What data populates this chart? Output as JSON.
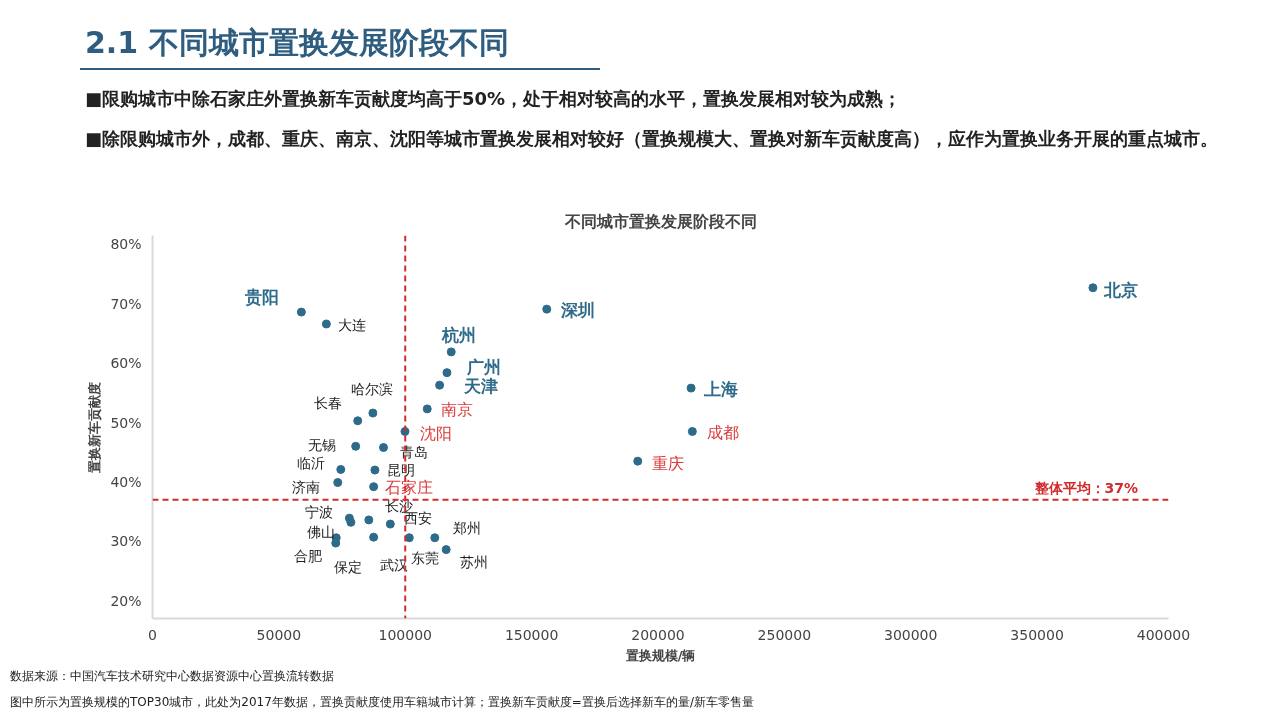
{
  "chart_data": {
    "type": "scatter",
    "title": "2.1 不同城市置换发展阶段不同",
    "subtitle": "不同城市置换发展阶段不同",
    "xlabel": "置换规模/辆",
    "ylabel": "置换新车贡献度",
    "annotations": [
      "■限购城市中除石家庄外置换新车贡献度均高于50%，处于相对较高的水平，置换发展相对较为成熟；",
      "■除限购城市外，成都、重庆、南京、沈阳等城市置换发展相对较好（置换规模大、置换对新车贡献度高），应作为置换业务开展的重点城市。",
      "数据来源：中国汽车技术研究中心数据资源中心置换流转数据",
      "图中所示为置换规模的TOP30城市，此处为2017年数据，置换贡献度使用车籍城市计算；置换新车贡献度=置换后选择新车的量/新车零售量"
    ],
    "series": [
      {
        "color": "#2e6b8a",
        "x": [
          372100,
          213100,
          116500,
          156000,
          113600,
          118200,
          58900
        ],
        "values": [
          72.7,
          55.8,
          58.4,
          69.1,
          56.3,
          61.9,
          68.6
        ],
        "value_labels": [
          "北京",
          "上海",
          "广州",
          "深圳",
          "天津",
          "杭州",
          "贵阳"
        ]
      },
      {
        "color": "#2e6b8a",
        "x": [
          108700,
          99900,
          213600,
          192000,
          87500
        ],
        "values": [
          52.3,
          48.5,
          48.5,
          43.5,
          39.2
        ],
        "value_labels": [
          "南京",
          "沈阳",
          "成都",
          "重庆",
          "石家庄"
        ]
      },
      {
        "color": "#2e6b8a",
        "x": [
          68800,
          87200,
          81200,
          80400,
          91400,
          74500,
          88000,
          73300,
          77900,
          78500,
          85600,
          94100,
          111700,
          101600,
          116200,
          87500,
          72700,
          72500
        ],
        "values": [
          66.6,
          51.6,
          50.3,
          46.0,
          45.8,
          42.1,
          42.0,
          39.9,
          33.9,
          33.2,
          33.6,
          32.9,
          30.6,
          30.6,
          28.6,
          30.7,
          30.6,
          29.7
        ],
        "value_labels": [
          "大连",
          "哈尔滨",
          "长春",
          "无锡",
          "青岛",
          "临沂",
          "昆明",
          "济南",
          "宁波",
          "佛山",
          "长沙",
          "西安",
          "郑州",
          "东莞",
          "苏州",
          "武汉",
          "合肥",
          "保定"
        ]
      }
    ],
    "xlim": [
      0,
      402000
    ],
    "ylim": [
      17,
      81.5
    ],
    "xticks": [
      0,
      50000,
      100000,
      150000,
      200000,
      250000,
      300000,
      350000,
      400000
    ],
    "yticks": [
      {
        "value": 20,
        "label": "20%"
      },
      {
        "value": 30,
        "label": "30%"
      },
      {
        "value": 40,
        "label": "40%"
      },
      {
        "value": 50,
        "label": "50%"
      },
      {
        "value": 60,
        "label": "60%"
      },
      {
        "value": 70,
        "label": "70%"
      },
      {
        "value": 80,
        "label": "80%"
      }
    ],
    "ref_lines": [
      {
        "axis": "x",
        "value": 100000,
        "color": "#d02c2c",
        "line_style": "dashed"
      },
      {
        "axis": "y",
        "value": 37,
        "label": "整体平均：37%",
        "color": "#d02c2c",
        "line_style": "dashed"
      }
    ],
    "marker": "circle",
    "grid": false
  }
}
